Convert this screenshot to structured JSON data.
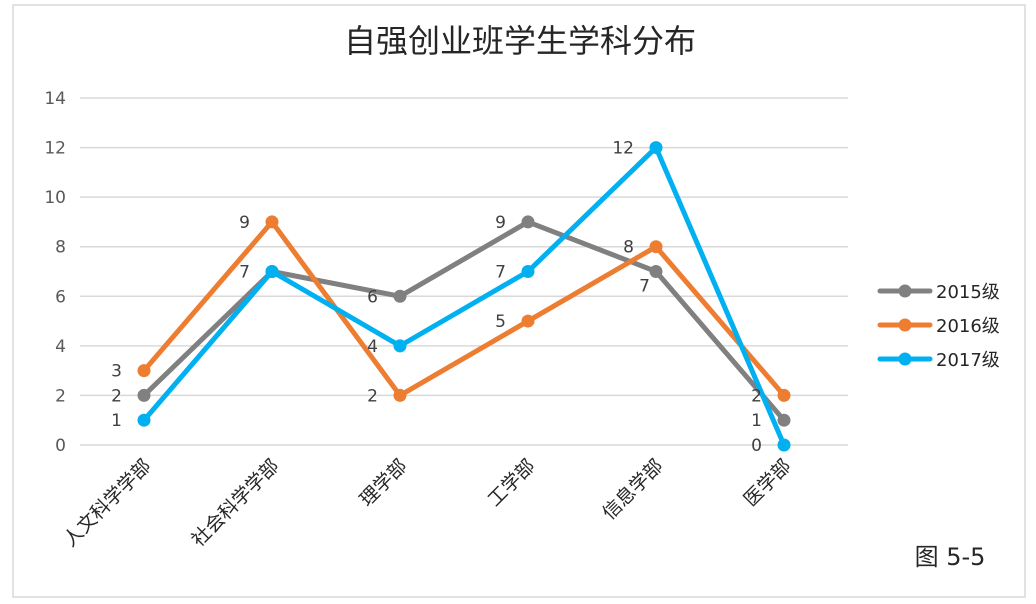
{
  "chart_data": {
    "type": "line",
    "title": "自强创业班学生学科分布",
    "categories": [
      "人文科学学部",
      "社会科学学部",
      "理学部",
      "工学部",
      "信息学部",
      "医学部"
    ],
    "ylim": [
      0,
      14
    ],
    "yticks": [
      "0",
      "2",
      "4",
      "6",
      "8",
      "10",
      "12",
      "14"
    ],
    "grid": true,
    "legend_position": "right",
    "series": [
      {
        "name": "2015级",
        "color": "#808080",
        "values": [
          2,
          7,
          6,
          9,
          7,
          1
        ]
      },
      {
        "name": "2016级",
        "color": "#ed7d31",
        "values": [
          3,
          9,
          2,
          5,
          8,
          2
        ]
      },
      {
        "name": "2017级",
        "color": "#00b0f0",
        "values": [
          1,
          7,
          4,
          7,
          12,
          0
        ]
      }
    ]
  },
  "caption": "图 5-5"
}
